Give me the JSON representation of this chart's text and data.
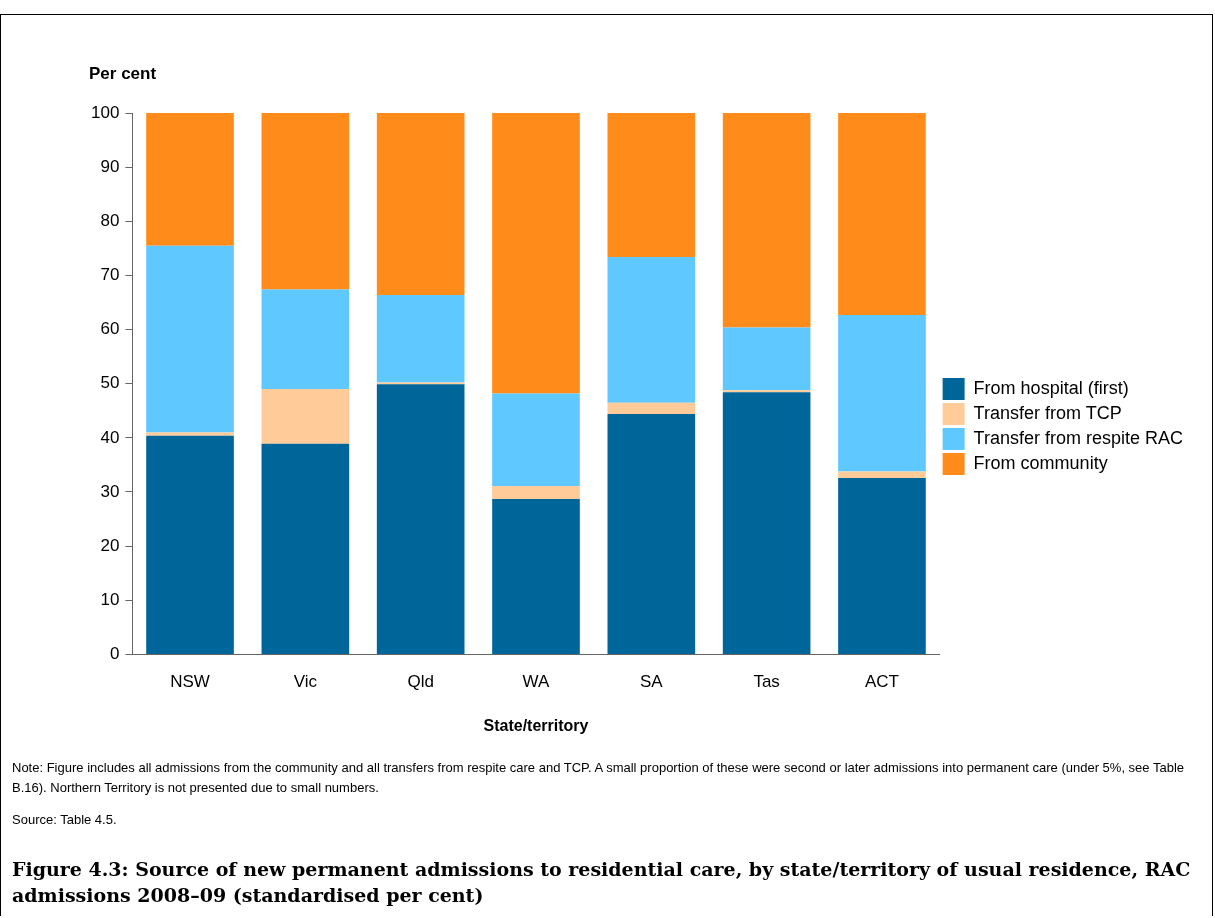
{
  "chart_data": {
    "type": "bar",
    "stacked": true,
    "title": "Figure 4.3: Source of new permanent admissions to residential care, by state/territory of usual residence, RAC admissions 2008–09 (standardised per cent)",
    "xlabel": "State/territory",
    "ylabel": "Per cent",
    "categories": [
      "NSW",
      "Vic",
      "Qld",
      "WA",
      "SA",
      "Tas",
      "ACT"
    ],
    "series": [
      {
        "name": "From hospital (first)",
        "color": "#006699",
        "values": [
          40.4,
          38.9,
          49.9,
          28.7,
          44.4,
          48.4,
          32.6
        ]
      },
      {
        "name": "Transfer from TCP",
        "color": "#ffcc99",
        "values": [
          0.6,
          10.1,
          0.3,
          2.4,
          2.1,
          0.4,
          1.2
        ]
      },
      {
        "name": "Transfer from respite RAC",
        "color": "#5fc8ff",
        "values": [
          34.5,
          18.4,
          16.2,
          17.1,
          26.9,
          11.6,
          28.9
        ]
      },
      {
        "name": "From community",
        "color": "#ff8c1a",
        "values": [
          24.5,
          32.6,
          33.6,
          51.8,
          26.6,
          39.6,
          37.3
        ]
      }
    ],
    "ylim": [
      0,
      100
    ],
    "yticks": [
      0,
      10,
      20,
      30,
      40,
      50,
      60,
      70,
      80,
      90,
      100
    ],
    "grid": false,
    "legend": "right",
    "annotations": [
      "Note: Figure includes all admissions from the community and all transfers from respite care and TCP. A small proportion of these were second or later admissions into permanent care (under 5%, see Table B.16). Northern Territory is not presented due to small numbers.",
      "Source: Table 4.5."
    ]
  }
}
